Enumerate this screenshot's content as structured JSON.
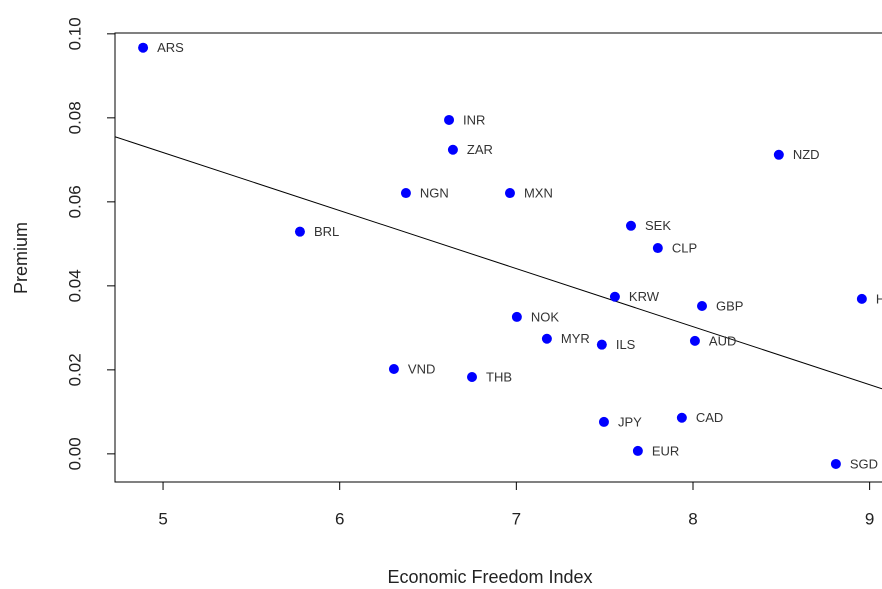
{
  "chart_data": {
    "type": "scatter",
    "x_label": "Economic Freedom Index",
    "y_label": "Premium",
    "xlim": [
      4.728,
      9.07
    ],
    "ylim": [
      -0.0067,
      0.1002
    ],
    "xticks": [
      5,
      6,
      7,
      8,
      9
    ],
    "yticks": [
      {
        "value": 0,
        "label": "0.00"
      },
      {
        "value": 0.02,
        "label": "0.02"
      },
      {
        "value": 0.04,
        "label": "0.04"
      },
      {
        "value": 0.06,
        "label": "0.06"
      },
      {
        "value": 0.08,
        "label": "0.08"
      },
      {
        "value": 0.1,
        "label": "0.10"
      }
    ],
    "color": "#0000ff",
    "labels": [
      "ARS",
      "INR",
      "ZAR",
      "NZD",
      "NGN",
      "MXN",
      "BRL",
      "SEK",
      "CLP",
      "KRW",
      "GBP",
      "H",
      "NOK",
      "MYR",
      "ILS",
      "AUD",
      "VND",
      "THB",
      "JPY",
      "CAD",
      "EUR",
      "SGD"
    ],
    "x": [
      4.887,
      6.619,
      6.641,
      8.486,
      6.375,
      6.964,
      5.775,
      7.649,
      7.801,
      7.558,
      8.051,
      8.956,
      7.003,
      7.173,
      7.484,
      8.011,
      6.307,
      6.749,
      7.496,
      7.937,
      7.688,
      8.809
    ],
    "values": [
      0.0967,
      0.0795,
      0.0724,
      0.0712,
      0.0621,
      0.0621,
      0.0529,
      0.0543,
      0.049,
      0.0374,
      0.0352,
      0.0369,
      0.0326,
      0.0274,
      0.026,
      0.0269,
      0.0202,
      0.0183,
      0.0076,
      0.0086,
      0.0007,
      -0.0024
    ],
    "fit_line": {
      "x": [
        4.728,
        9.07
      ],
      "y": [
        0.0755,
        0.0155
      ],
      "color": "#000000"
    }
  }
}
